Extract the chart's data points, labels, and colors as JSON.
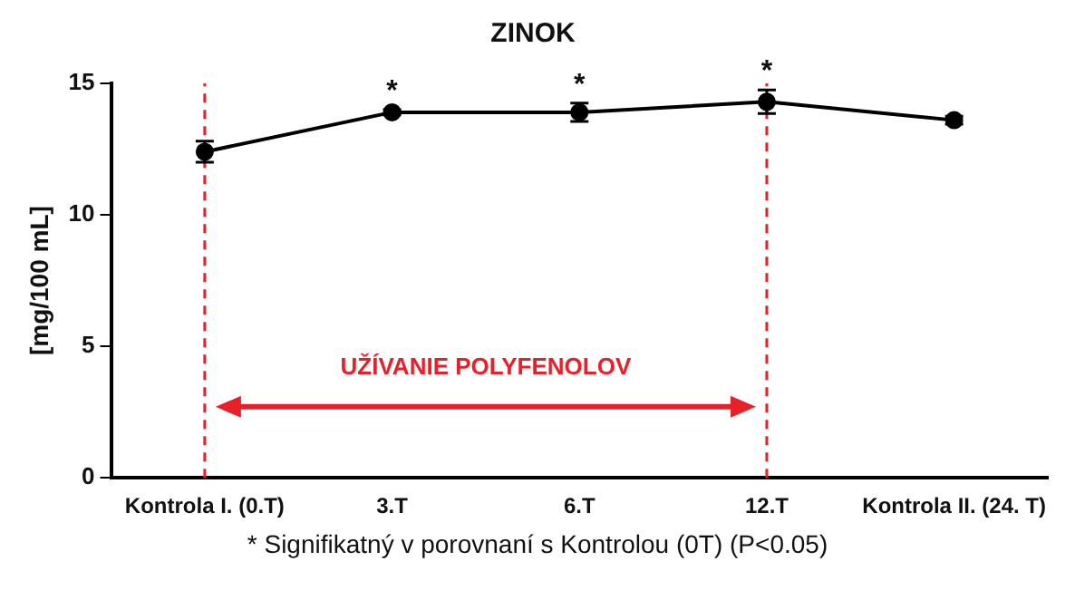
{
  "chart_data": {
    "type": "line",
    "title": "ZINOK",
    "ylabel": "[mg/100 mL]",
    "categories": [
      "Kontrola I. (0.T)",
      "3.T",
      "6.T",
      "12.T",
      "Kontrola II. (24. T)"
    ],
    "series": [
      {
        "color": "#000000",
        "values": [
          12.4,
          13.9,
          13.9,
          14.3,
          13.6
        ],
        "errors": [
          0.4,
          0.1,
          0.35,
          0.45,
          0.15
        ],
        "value_labels": [
          null,
          "*",
          "*",
          "*",
          null
        ]
      }
    ],
    "ylim": [
      0,
      15
    ],
    "yticks": [
      0,
      5,
      10,
      15
    ],
    "grid": false,
    "legend": false,
    "marker": "circle",
    "line_style": "solid",
    "ref_lines": [
      {
        "axis": "x",
        "value": "Kontrola I. (0.T)",
        "color": "#e8202a",
        "line_style": "dashed"
      },
      {
        "axis": "x",
        "value": "12.T",
        "color": "#e8202a",
        "line_style": "dashed"
      }
    ],
    "annotations": [
      "UŽÍVANIE POLYFENOLOV",
      "* Signifikatný v porovnaní s Kontrolou (0T) (P<0.05)"
    ]
  }
}
